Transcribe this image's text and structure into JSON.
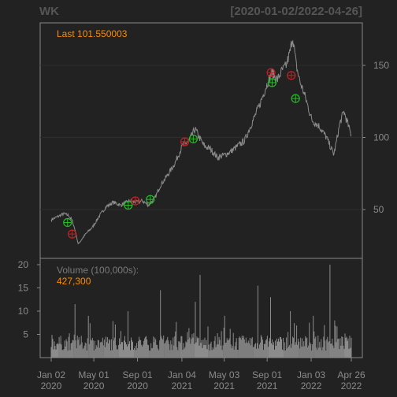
{
  "header": {
    "symbol": "WK",
    "date_range": "[2020-01-02/2022-04-26]"
  },
  "price_panel": {
    "last_label": "Last 101.550003"
  },
  "volume_panel": {
    "label": "Volume (100,000s):",
    "last_value": "427,300"
  },
  "colors": {
    "background": "#222222",
    "panel_border": "#888888",
    "price_line": "#8c8c8c",
    "volume_bar": "#8c8c8c",
    "buy_marker": "#22c022",
    "sell_marker": "#c02222",
    "annotation": "#ff8c00",
    "axis_text": "#8a8a8a"
  },
  "chart_data": [
    {
      "type": "line",
      "title": "WK",
      "subtitle": "[2020-01-02/2022-04-26]",
      "x_range": [
        "2020-01-02",
        "2022-04-26"
      ],
      "ylim": [
        20,
        180
      ],
      "y_ticks": [
        50,
        100,
        150
      ],
      "grid": true,
      "last_value": 101.55,
      "series": [
        {
          "x": [
            "2020-01-02",
            "2020-01-20",
            "2020-02-05",
            "2020-02-20",
            "2020-03-02",
            "2020-03-12",
            "2020-03-18",
            "2020-03-24",
            "2020-04-08",
            "2020-04-28",
            "2020-05-15",
            "2020-06-05",
            "2020-06-25",
            "2020-07-15",
            "2020-08-10",
            "2020-08-28",
            "2020-09-15",
            "2020-10-02",
            "2020-10-20",
            "2020-11-05",
            "2020-11-25",
            "2020-12-15",
            "2021-01-05",
            "2021-01-25",
            "2021-02-10",
            "2021-02-22",
            "2021-03-08",
            "2021-03-25",
            "2021-04-15",
            "2021-05-05",
            "2021-05-20",
            "2021-06-10",
            "2021-06-30",
            "2021-07-20",
            "2021-08-10",
            "2021-08-30",
            "2021-09-15",
            "2021-09-30",
            "2021-10-12",
            "2021-10-25",
            "2021-11-05",
            "2021-11-12",
            "2021-11-22",
            "2021-12-03",
            "2021-12-15",
            "2022-01-05",
            "2022-01-25",
            "2022-02-15",
            "2022-03-08",
            "2022-03-25",
            "2022-04-05",
            "2022-04-26"
          ],
          "y": [
            43,
            45,
            47,
            46,
            42,
            33,
            26,
            28,
            33,
            38,
            45,
            52,
            55,
            53,
            56,
            55,
            56,
            53,
            58,
            67,
            74,
            82,
            94,
            98,
            106,
            100,
            94,
            92,
            86,
            88,
            90,
            94,
            98,
            110,
            122,
            136,
            145,
            140,
            146,
            150,
            160,
            170,
            150,
            138,
            130,
            112,
            108,
            100,
            88,
            110,
            118,
            101.55
          ]
        }
      ],
      "markers": [
        {
          "kind": "buy",
          "x": "2020-02-17",
          "y": 41
        },
        {
          "kind": "sell",
          "x": "2020-03-01",
          "y": 33
        },
        {
          "kind": "buy",
          "x": "2020-08-06",
          "y": 53
        },
        {
          "kind": "sell",
          "x": "2020-08-26",
          "y": 56
        },
        {
          "kind": "buy",
          "x": "2020-10-07",
          "y": 57
        },
        {
          "kind": "sell",
          "x": "2021-01-12",
          "y": 97
        },
        {
          "kind": "buy",
          "x": "2021-02-05",
          "y": 99
        },
        {
          "kind": "sell",
          "x": "2021-09-12",
          "y": 145
        },
        {
          "kind": "buy",
          "x": "2021-09-15",
          "y": 138
        },
        {
          "kind": "sell",
          "x": "2021-11-08",
          "y": 143
        },
        {
          "kind": "buy",
          "x": "2021-11-20",
          "y": 127
        }
      ]
    },
    {
      "type": "bar",
      "title": "Volume (100,000s):",
      "ylim": [
        0,
        21
      ],
      "y_ticks": [
        5,
        10,
        15,
        20
      ],
      "x_ticks": [
        {
          "date": "2020-01-02",
          "label1": "Jan 02",
          "label2": "2020"
        },
        {
          "date": "2020-05-01",
          "label1": "May 01",
          "label2": "2020"
        },
        {
          "date": "2020-09-01",
          "label1": "Sep 01",
          "label2": "2020"
        },
        {
          "date": "2021-01-04",
          "label1": "Jan 04",
          "label2": "2021"
        },
        {
          "date": "2021-05-03",
          "label1": "May 03",
          "label2": "2021"
        },
        {
          "date": "2021-09-01",
          "label1": "Sep 01",
          "label2": "2021"
        },
        {
          "date": "2022-01-03",
          "label1": "Jan 03",
          "label2": "2022"
        },
        {
          "date": "2022-04-26",
          "label1": "Apr 26",
          "label2": "2022"
        }
      ],
      "baseline": 2.5,
      "spikes": [
        {
          "x": "2020-03-10",
          "value": 11.5
        },
        {
          "x": "2020-04-15",
          "value": 9
        },
        {
          "x": "2020-08-06",
          "value": 10
        },
        {
          "x": "2020-11-05",
          "value": 14.5
        },
        {
          "x": "2021-02-10",
          "value": 12
        },
        {
          "x": "2021-02-25",
          "value": 17.8
        },
        {
          "x": "2021-05-05",
          "value": 9
        },
        {
          "x": "2021-08-05",
          "value": 15.5
        },
        {
          "x": "2021-09-10",
          "value": 13
        },
        {
          "x": "2021-11-05",
          "value": 10
        },
        {
          "x": "2022-01-10",
          "value": 9
        },
        {
          "x": "2022-02-25",
          "value": 20
        },
        {
          "x": "2022-03-10",
          "value": 8
        },
        {
          "x": "2022-04-26",
          "value": 4.27
        }
      ]
    }
  ]
}
